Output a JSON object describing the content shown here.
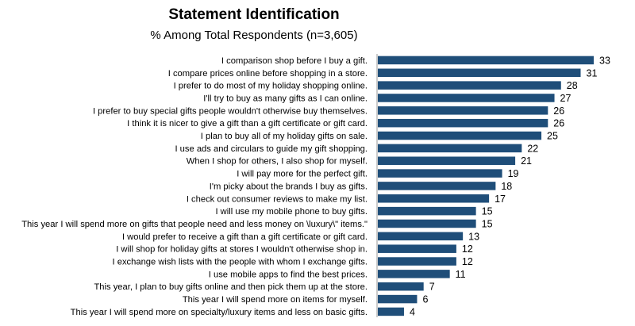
{
  "chart_data": {
    "type": "bar",
    "orientation": "horizontal",
    "title": "Statement Identification",
    "subtitle": "% Among Total Respondents (n=3,605)",
    "xlabel": "",
    "ylabel": "",
    "xlim": [
      0,
      33
    ],
    "grid": false,
    "legend": "none",
    "bar_color": "#1f4e79",
    "categories": [
      "I comparison shop before I buy a gift.",
      "I compare prices online before shopping in a store.",
      "I prefer to do most of my holiday shopping online.",
      "I'll try to buy as many gifts as I can online.",
      "I prefer to buy special gifts people wouldn't otherwise buy themselves.",
      "I think it is nicer to give a gift than a gift certificate or gift card.",
      "I plan to buy all of my holiday gifts on sale.",
      "I use ads and circulars to guide my gift shopping.",
      "When I shop for others, I also shop for myself.",
      "I will pay more for the perfect gift.",
      "I'm picky about the brands I buy as gifts.",
      "I check out consumer reviews to make my list.",
      "I will use my mobile phone to buy gifts.",
      "This year I will spend more on gifts that people need and less money on \\luxury\\\" items.\"",
      "I would prefer to receive a gift than a gift certificate or gift card.",
      "I will shop for holiday gifts at stores I wouldn't otherwise shop in.",
      "I exchange wish lists with the people with whom I exchange gifts.",
      "I use mobile apps to find the best prices.",
      "This year, I plan to buy gifts online and then pick them up at the store.",
      "This year I will spend more on items for myself.",
      "This year I will spend more on specialty/luxury items and less on basic gifts."
    ],
    "values": [
      33,
      31,
      28,
      27,
      26,
      26,
      25,
      22,
      21,
      19,
      18,
      17,
      15,
      15,
      13,
      12,
      12,
      11,
      7,
      6,
      4
    ]
  }
}
